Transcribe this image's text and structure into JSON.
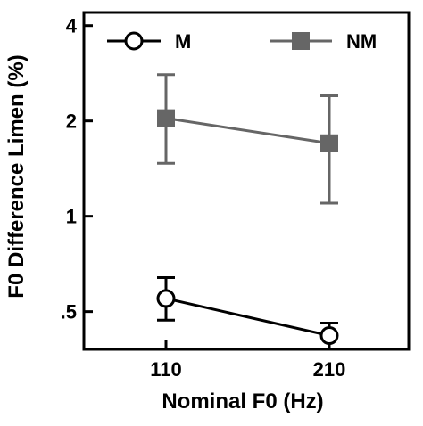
{
  "chart_data": {
    "type": "line",
    "title": "",
    "xlabel": "Nominal F0 (Hz)",
    "ylabel": "F0 Difference Limen (%)",
    "x_scale": "categorical",
    "y_scale": "log2",
    "categories": [
      "110",
      "210"
    ],
    "ylim": [
      0.38,
      4.4
    ],
    "y_ticks": [
      0.5,
      1,
      2,
      4
    ],
    "y_tick_labels": [
      ".5",
      "1",
      "2",
      "4"
    ],
    "grid": false,
    "legend_position": "top",
    "series": [
      {
        "name": "M",
        "marker": "circle-open",
        "color": "#000000",
        "values": [
          0.55,
          0.42
        ],
        "error_low": [
          0.47,
          0.38
        ],
        "error_high": [
          0.64,
          0.46
        ]
      },
      {
        "name": "NM",
        "marker": "square-filled",
        "color": "#666666",
        "values": [
          2.04,
          1.7
        ],
        "error_low": [
          1.47,
          1.1
        ],
        "error_high": [
          2.8,
          2.4
        ]
      }
    ]
  }
}
